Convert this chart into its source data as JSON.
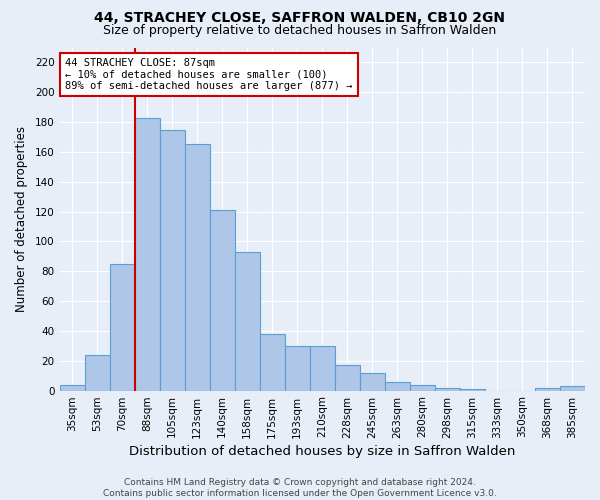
{
  "title": "44, STRACHEY CLOSE, SAFFRON WALDEN, CB10 2GN",
  "subtitle": "Size of property relative to detached houses in Saffron Walden",
  "xlabel": "Distribution of detached houses by size in Saffron Walden",
  "ylabel": "Number of detached properties",
  "categories": [
    "35sqm",
    "53sqm",
    "70sqm",
    "88sqm",
    "105sqm",
    "123sqm",
    "140sqm",
    "158sqm",
    "175sqm",
    "193sqm",
    "210sqm",
    "228sqm",
    "245sqm",
    "263sqm",
    "280sqm",
    "298sqm",
    "315sqm",
    "333sqm",
    "350sqm",
    "368sqm",
    "385sqm"
  ],
  "values": [
    4,
    24,
    85,
    183,
    175,
    165,
    121,
    93,
    38,
    30,
    30,
    17,
    12,
    6,
    4,
    2,
    1,
    0,
    0,
    2,
    3
  ],
  "bar_color": "#aec6e8",
  "bar_edge_color": "#5a9fd4",
  "vline_color": "#cc0000",
  "annotation_line1": "44 STRACHEY CLOSE: 87sqm",
  "annotation_line2": "← 10% of detached houses are smaller (100)",
  "annotation_line3": "89% of semi-detached houses are larger (877) →",
  "annotation_box_color": "#ffffff",
  "annotation_box_edge": "#cc0000",
  "ylim": [
    0,
    230
  ],
  "yticks": [
    0,
    20,
    40,
    60,
    80,
    100,
    120,
    140,
    160,
    180,
    200,
    220
  ],
  "footer": "Contains HM Land Registry data © Crown copyright and database right 2024.\nContains public sector information licensed under the Open Government Licence v3.0.",
  "background_color": "#e8eef8",
  "plot_bg_color": "#e8eef8",
  "title_fontsize": 10,
  "subtitle_fontsize": 9,
  "xlabel_fontsize": 9.5,
  "ylabel_fontsize": 8.5,
  "tick_fontsize": 7.5,
  "footer_fontsize": 6.5
}
